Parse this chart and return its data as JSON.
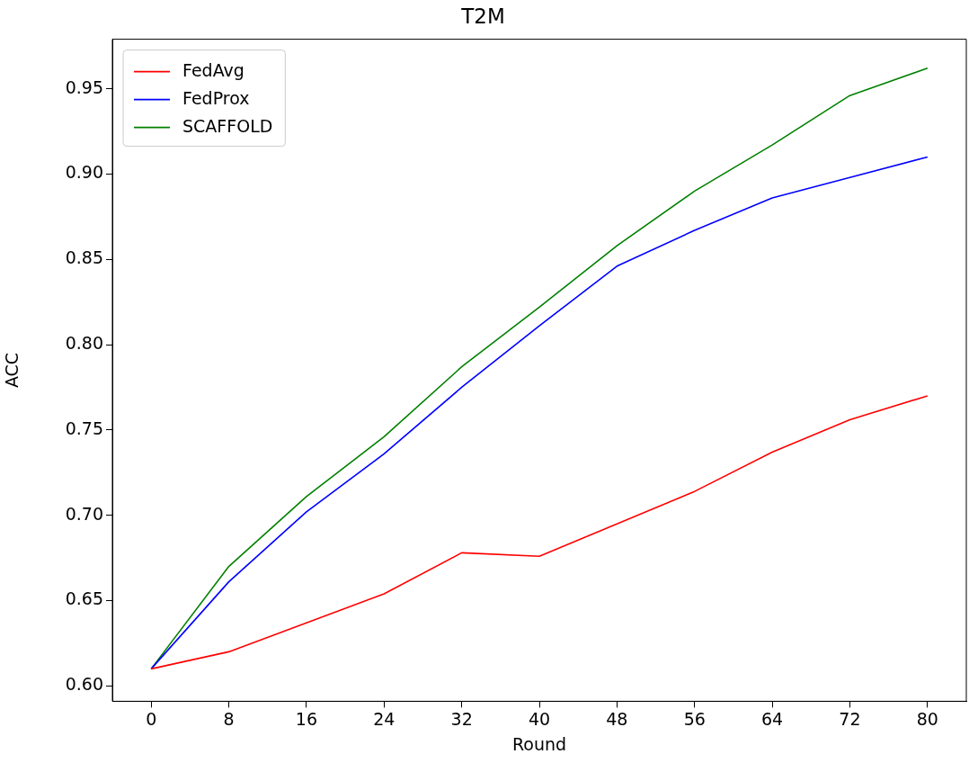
{
  "chart_data": {
    "type": "line",
    "title": "T2M",
    "xlabel": "Round",
    "ylabel": "ACC",
    "x": [
      0,
      8,
      16,
      24,
      32,
      40,
      48,
      56,
      64,
      72,
      80
    ],
    "series": [
      {
        "name": "FedAvg",
        "color": "#ff0000",
        "values": [
          0.61,
          0.62,
          0.637,
          0.654,
          0.678,
          0.676,
          0.695,
          0.714,
          0.737,
          0.756,
          0.77
        ]
      },
      {
        "name": "FedProx",
        "color": "#0000ff",
        "values": [
          0.61,
          0.661,
          0.702,
          0.736,
          0.775,
          0.811,
          0.846,
          0.867,
          0.886,
          0.898,
          0.91
        ]
      },
      {
        "name": "SCAFFOLD",
        "color": "#008000",
        "values": [
          0.61,
          0.67,
          0.711,
          0.746,
          0.787,
          0.822,
          0.858,
          0.89,
          0.917,
          0.946,
          0.962
        ]
      }
    ],
    "xlim": [
      -4,
      84
    ],
    "xticks": [
      0,
      8,
      16,
      24,
      32,
      40,
      48,
      56,
      64,
      72,
      80
    ],
    "ylim": [
      0.591,
      0.979
    ],
    "yticks": [
      {
        "value": 0.6,
        "label": "0.60"
      },
      {
        "value": 0.65,
        "label": "0.65"
      },
      {
        "value": 0.7,
        "label": "0.70"
      },
      {
        "value": 0.75,
        "label": "0.75"
      },
      {
        "value": 0.8,
        "label": "0.80"
      },
      {
        "value": 0.85,
        "label": "0.85"
      },
      {
        "value": 0.9,
        "label": "0.90"
      },
      {
        "value": 0.95,
        "label": "0.95"
      }
    ],
    "grid": false,
    "legend": "top left",
    "marker": "none",
    "line_style": "solid"
  }
}
